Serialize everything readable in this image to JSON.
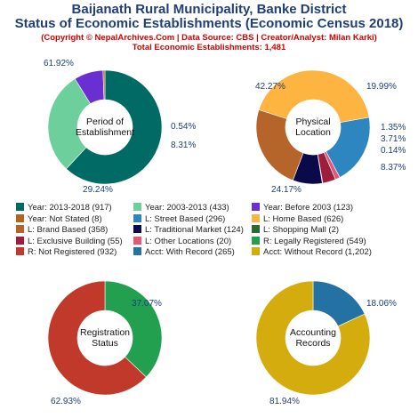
{
  "header": {
    "title_line1": "Baijanath Rural Municipality, Banke District",
    "title_line2": "Status of Economic Establishments (Economic Census 2018)",
    "subtitle_line1": "(Copyright © NepalArchives.Com | Data Source: CBS | Creator/Analyst: Milan Karki)",
    "subtitle_line2": "Total Economic Establishments: 1,481"
  },
  "chart_data": [
    {
      "type": "pie",
      "center_label": [
        "Period of",
        "Establishment"
      ],
      "slices": [
        {
          "label": "Year: 2013-2018",
          "value": 917,
          "percent": "61.92%",
          "color": "#006a64"
        },
        {
          "label": "Year: 2003-2013",
          "value": 433,
          "percent": "29.24%",
          "color": "#6ccf9c"
        },
        {
          "label": "Year: Before 2003",
          "value": 123,
          "percent": "8.31%",
          "color": "#6a2fd0"
        },
        {
          "label": "Year: Not Stated",
          "value": 8,
          "percent": "0.54%",
          "color": "#b5651d"
        }
      ]
    },
    {
      "type": "pie",
      "center_label": [
        "Physical",
        "Location"
      ],
      "slices": [
        {
          "label": "L: Street Based",
          "value": 296,
          "percent": "19.99%",
          "color": "#2e86c1"
        },
        {
          "label": "L: Other Locations",
          "value": 20,
          "percent": "1.35%",
          "color": "#e05a78"
        },
        {
          "label": "L: Exclusive Building",
          "value": 55,
          "percent": "3.71%",
          "color": "#a01c3c"
        },
        {
          "label": "L: Shopping Mall",
          "value": 2,
          "percent": "0.14%",
          "color": "#2d6a2d"
        },
        {
          "label": "L: Traditional Market",
          "value": 124,
          "percent": "8.37%",
          "color": "#0a0a4a"
        },
        {
          "label": "L: Brand Based",
          "value": 358,
          "percent": "24.17%",
          "color": "#b5652a"
        },
        {
          "label": "L: Home Based",
          "value": 626,
          "percent": "42.27%",
          "color": "#fdb441"
        }
      ]
    },
    {
      "type": "pie",
      "center_label": [
        "Registration",
        "Status"
      ],
      "slices": [
        {
          "label": "R: Legally Registered",
          "value": 549,
          "percent": "37.07%",
          "color": "#22a050"
        },
        {
          "label": "R: Not Registered",
          "value": 932,
          "percent": "62.93%",
          "color": "#c0392b"
        }
      ]
    },
    {
      "type": "pie",
      "center_label": [
        "Accounting",
        "Records"
      ],
      "slices": [
        {
          "label": "Acct: With Record",
          "value": 265,
          "percent": "18.06%",
          "color": "#2471a3"
        },
        {
          "label": "Acct: Without Record",
          "value": 1202,
          "percent": "81.94%",
          "color": "#d4ac0d"
        }
      ]
    }
  ],
  "legend": [
    {
      "text": "Year: 2013-2018 (917)",
      "color": "#006a64"
    },
    {
      "text": "Year: 2003-2013 (433)",
      "color": "#6ccf9c"
    },
    {
      "text": "Year: Before 2003 (123)",
      "color": "#6a2fd0"
    },
    {
      "text": "Year: Not Stated (8)",
      "color": "#b5651d"
    },
    {
      "text": "L: Street Based (296)",
      "color": "#2e86c1"
    },
    {
      "text": "L: Home Based (626)",
      "color": "#fdb441"
    },
    {
      "text": "L: Brand Based (358)",
      "color": "#b5652a"
    },
    {
      "text": "L: Traditional Market (124)",
      "color": "#0a0a4a"
    },
    {
      "text": "L: Shopping Mall (2)",
      "color": "#2d6a2d"
    },
    {
      "text": "L: Exclusive Building (55)",
      "color": "#a01c3c"
    },
    {
      "text": "L: Other Locations (20)",
      "color": "#e05a78"
    },
    {
      "text": "R: Legally Registered (549)",
      "color": "#22a050"
    },
    {
      "text": "R: Not Registered (932)",
      "color": "#c0392b"
    },
    {
      "text": "Acct: With Record (265)",
      "color": "#2471a3"
    },
    {
      "text": "Acct: Without Record (1,202)",
      "color": "#d4ac0d"
    }
  ]
}
